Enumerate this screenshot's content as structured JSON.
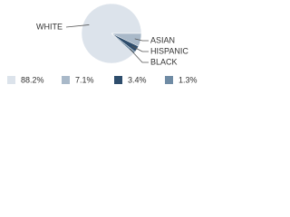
{
  "chart_data": {
    "type": "pie",
    "categories": [
      "WHITE",
      "ASIAN",
      "HISPANIC",
      "BLACK"
    ],
    "values": [
      88.2,
      7.1,
      3.4,
      1.3
    ],
    "value_labels": [
      "88.2%",
      "7.1%",
      "3.4%",
      "1.3%"
    ],
    "colors": [
      "#dce3eb",
      "#a9b9c9",
      "#2e4d6c",
      "#6f8ba4"
    ]
  }
}
